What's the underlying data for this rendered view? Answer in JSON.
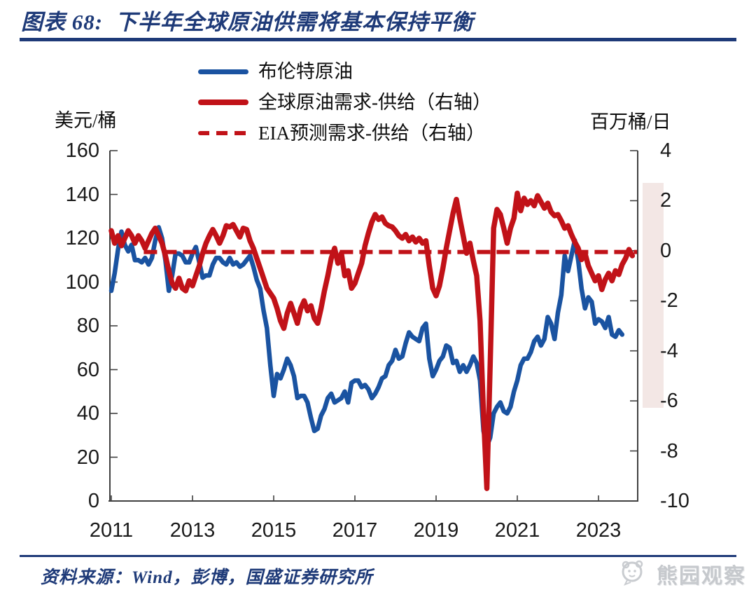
{
  "header": {
    "title": "图表 68:  下半年全球原油供需将基本保持平衡"
  },
  "colors": {
    "accent_navy": "#1e3a78",
    "brent_blue": "#1a53a1",
    "balance_red": "#c11218",
    "band_pink": "#f3e7e5",
    "axis_grey": "#404040",
    "tick_text": "#1a1a1a",
    "watermark_grey": "#c6c9cd"
  },
  "footer": {
    "source": "资料来源：Wind，彭博，国盛证券研究所",
    "watermark": "熊园观察"
  },
  "chart_data": {
    "type": "line",
    "title": "下半年全球原油供需将基本保持平衡",
    "left_axis": {
      "unit": "美元/桶",
      "range": [
        0,
        160
      ],
      "ticks": [
        160,
        140,
        120,
        100,
        80,
        60,
        40,
        20,
        0
      ]
    },
    "right_axis": {
      "unit": "百万桶/日",
      "range": [
        -10,
        4
      ],
      "ticks": [
        4,
        2,
        0,
        -2,
        -4,
        -6,
        -8,
        -10
      ]
    },
    "x_axis": {
      "range": [
        2011,
        2024
      ],
      "ticks": [
        "2011",
        "2013",
        "2015",
        "2017",
        "2019",
        "2021",
        "2023"
      ]
    },
    "grid": false,
    "legend_position": "top",
    "annotations": {
      "forecast_band": {
        "from_value": 2.7,
        "to_value": -6.3
      }
    },
    "series": [
      {
        "id": "brent",
        "name": "布伦特原油",
        "axis": "left",
        "color": "#1a53a1",
        "dash": false,
        "width": 6.5,
        "start": 2011.0,
        "step": 0.0833333,
        "values": [
          96,
          104,
          115,
          123,
          117,
          114,
          117,
          110,
          110,
          109,
          111,
          108,
          111,
          119,
          125,
          120,
          110,
          96,
          103,
          113,
          113,
          112,
          109,
          109,
          113,
          116,
          109,
          102,
          103,
          103,
          108,
          111,
          111,
          109,
          108,
          111,
          108,
          109,
          107,
          108,
          110,
          112,
          107,
          101,
          97,
          87,
          79,
          62,
          48,
          58,
          56,
          60,
          65,
          62,
          57,
          47,
          48,
          48,
          45,
          38,
          32,
          33,
          39,
          42,
          47,
          49,
          45,
          46,
          47,
          50,
          45,
          54,
          55,
          55,
          52,
          53,
          51,
          47,
          49,
          52,
          56,
          57,
          62,
          64,
          69,
          65,
          66,
          72,
          77,
          75,
          74,
          73,
          79,
          81,
          65,
          57,
          60,
          64,
          66,
          71,
          70,
          63,
          64,
          59,
          62,
          59,
          62,
          66,
          63,
          55,
          32,
          25,
          29,
          40,
          43,
          45,
          41,
          40,
          43,
          50,
          55,
          62,
          65,
          65,
          68,
          73,
          75,
          71,
          74,
          84,
          81,
          74,
          86,
          94,
          112,
          105,
          112,
          119,
          110,
          97,
          88,
          93,
          91,
          81,
          83,
          82,
          79,
          84,
          76,
          75,
          78,
          76
        ]
      },
      {
        "id": "balance",
        "name": "全球原油需求-供给（右轴）",
        "axis": "right",
        "color": "#c11218",
        "dash": false,
        "width": 7.5,
        "start": 2011.0,
        "step": 0.0833333,
        "values": [
          0.8,
          0.3,
          0.6,
          0.2,
          0.5,
          0.8,
          0.6,
          0.3,
          0.6,
          0.4,
          0.1,
          0.4,
          0.7,
          0.9,
          0.6,
          0.3,
          -0.2,
          -0.8,
          -1.3,
          -1.5,
          -1.1,
          -1.5,
          -1.6,
          -1.2,
          -1.4,
          -1.0,
          -0.6,
          -0.1,
          0.3,
          0.6,
          0.85,
          0.6,
          0.3,
          0.6,
          1.0,
          0.95,
          1.05,
          0.8,
          0.55,
          0.9,
          0.85,
          0.4,
          0.1,
          -0.3,
          -0.7,
          -1.1,
          -1.5,
          -1.7,
          -1.9,
          -2.3,
          -2.8,
          -3.1,
          -2.5,
          -2.1,
          -2.5,
          -2.9,
          -2.3,
          -2.0,
          -2.4,
          -2.2,
          -2.7,
          -2.9,
          -2.3,
          -1.6,
          -1.0,
          -0.3,
          0.1,
          -0.5,
          -0.1,
          -1.0,
          -0.8,
          -1.5,
          -1.3,
          -0.9,
          -0.5,
          0.2,
          0.7,
          1.15,
          1.45,
          1.25,
          1.35,
          1.1,
          1.0,
          0.95,
          0.8,
          0.6,
          0.5,
          0.65,
          0.4,
          0.55,
          0.35,
          0.5,
          0.3,
          0.4,
          -0.6,
          -1.5,
          -1.8,
          -1.4,
          -0.7,
          0.1,
          0.8,
          1.5,
          2.05,
          1.3,
          0.6,
          -0.1,
          0.3,
          -0.4,
          -1.0,
          -2.8,
          -6.5,
          -9.5,
          -4.5,
          0.9,
          1.65,
          1.45,
          0.9,
          0.3,
          0.9,
          1.3,
          2.3,
          1.6,
          2.1,
          1.85,
          2.0,
          1.8,
          2.2,
          1.95,
          1.7,
          1.9,
          1.55,
          1.4,
          1.45,
          1.2,
          0.9,
          1.0,
          0.65,
          0.35,
          0.1,
          -0.35,
          -0.1,
          -0.6,
          -0.9,
          -1.2,
          -1.0,
          -1.55,
          -1.15,
          -0.9,
          -1.2,
          -0.8,
          -0.95,
          -0.55,
          -0.3,
          0.05,
          -0.2
        ]
      },
      {
        "id": "eia-forecast",
        "name": "EIA预测需求-供给（右轴）",
        "axis": "right",
        "color": "#c11218",
        "dash": true,
        "width": 6,
        "start": 2011.8,
        "step": 12.15,
        "values": [
          -0.05,
          -0.05
        ]
      }
    ]
  }
}
